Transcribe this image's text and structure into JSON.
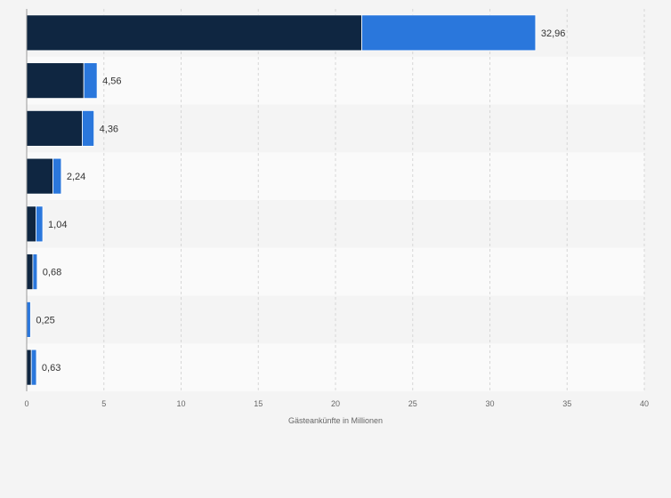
{
  "chart_data": {
    "type": "bar",
    "orientation": "horizontal",
    "stacked": true,
    "xlabel": "Gästeankünfte in Millionen",
    "xlim": [
      0,
      40
    ],
    "x_ticks": [
      "0",
      "5",
      "10",
      "15",
      "20",
      "25",
      "30",
      "35",
      "40"
    ],
    "categories": [
      "",
      "",
      "",
      "",
      "",
      "",
      "",
      ""
    ],
    "series": [
      {
        "color": "#0f2641",
        "values": [
          21.7,
          3.7,
          3.6,
          1.7,
          0.6,
          0.4,
          0.0,
          0.3
        ]
      },
      {
        "color": "#2a77dc",
        "values": [
          11.26,
          0.86,
          0.76,
          0.54,
          0.44,
          0.28,
          0.25,
          0.33
        ]
      }
    ],
    "totals": [
      32.96,
      4.56,
      4.36,
      2.24,
      1.04,
      0.68,
      0.25,
      0.63
    ],
    "total_labels": [
      "32,96",
      "4,56",
      "4,36",
      "2,24",
      "1,04",
      "0,68",
      "0,25",
      "0,63"
    ],
    "grid": true,
    "legend": "none"
  }
}
